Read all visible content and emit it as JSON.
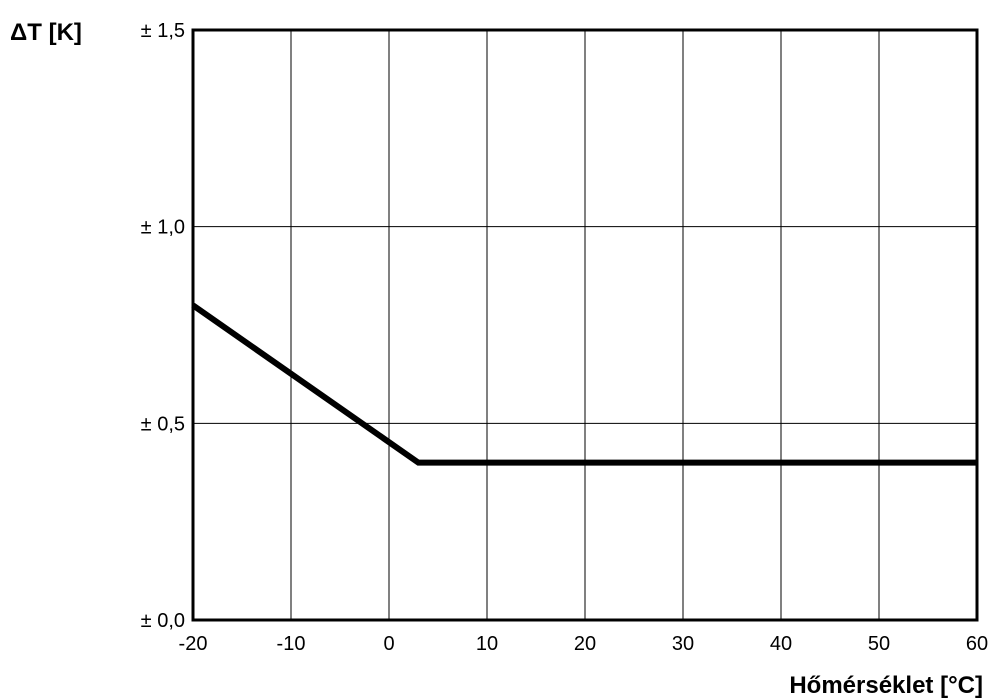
{
  "chart_data": {
    "type": "line",
    "title": "",
    "xlabel": "Hőmérséklet [°C]",
    "ylabel": "ΔT [K]",
    "xlim": [
      -20,
      60
    ],
    "ylim": [
      0,
      1.5
    ],
    "x_ticks": [
      -20,
      -10,
      0,
      10,
      20,
      30,
      40,
      50,
      60
    ],
    "x_tick_labels": [
      "-20",
      "-10",
      "0",
      "10",
      "20",
      "30",
      "40",
      "50",
      "60"
    ],
    "y_ticks": [
      0,
      0.5,
      1.0,
      1.5
    ],
    "y_tick_labels": [
      "± 0,0",
      "± 0,5",
      "± 1,0",
      "± 1,5"
    ],
    "grid": true,
    "series": [
      {
        "x": [
          -20,
          3,
          60
        ],
        "y": [
          0.8,
          0.4,
          0.4
        ],
        "color": "#000000"
      }
    ]
  }
}
